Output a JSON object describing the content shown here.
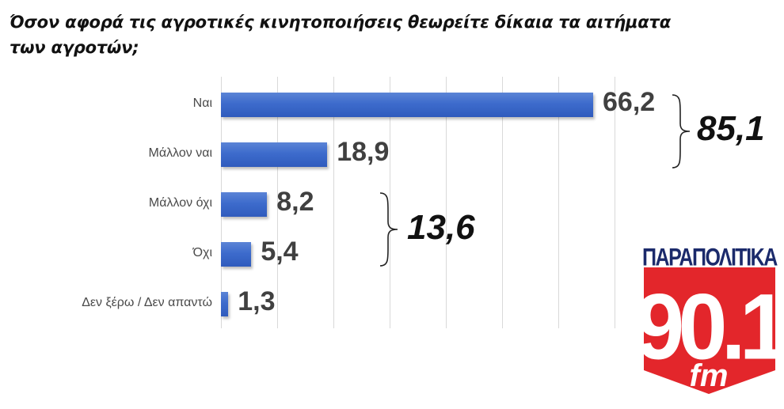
{
  "title": "Όσον αφορά τις αγροτικές κινητοποιήσεις θεωρείτε δίκαια τα αιτήματα των αγροτών;",
  "chart_data": {
    "type": "bar",
    "orientation": "horizontal",
    "title": "Όσον αφορά τις αγροτικές κινητοποιήσεις θεωρείτε δίκαια τα αιτήματα των αγροτών;",
    "categories": [
      "Ναι",
      "Μάλλον ναι",
      "Μάλλον όχι",
      "Όχι",
      "Δεν ξέρω / Δεν απαντώ"
    ],
    "values": [
      66.2,
      18.9,
      8.2,
      5.4,
      1.3
    ],
    "value_labels": [
      "66,2",
      "18,9",
      "8,2",
      "5,4",
      "1,3"
    ],
    "xlabel": "",
    "ylabel": "",
    "xlim": [
      0,
      70
    ],
    "grid": true,
    "bar_color": "#3d6bcc",
    "annotations": [
      {
        "type": "brace-sum",
        "groups": [
          "Ναι",
          "Μάλλον ναι"
        ],
        "label": "85,1",
        "value": 85.1
      },
      {
        "type": "brace-sum",
        "groups": [
          "Μάλλον όχι",
          "Όχι"
        ],
        "label": "13,6",
        "value": 13.6
      }
    ],
    "legend": null
  },
  "logo": {
    "top_text": "ΠΑΡΑΠΟΛΙΤΙΚΑ",
    "frequency": "90.1",
    "band": "fm",
    "colors": {
      "red": "#e3262b",
      "navy": "#1b2a6b",
      "white": "#ffffff"
    }
  }
}
